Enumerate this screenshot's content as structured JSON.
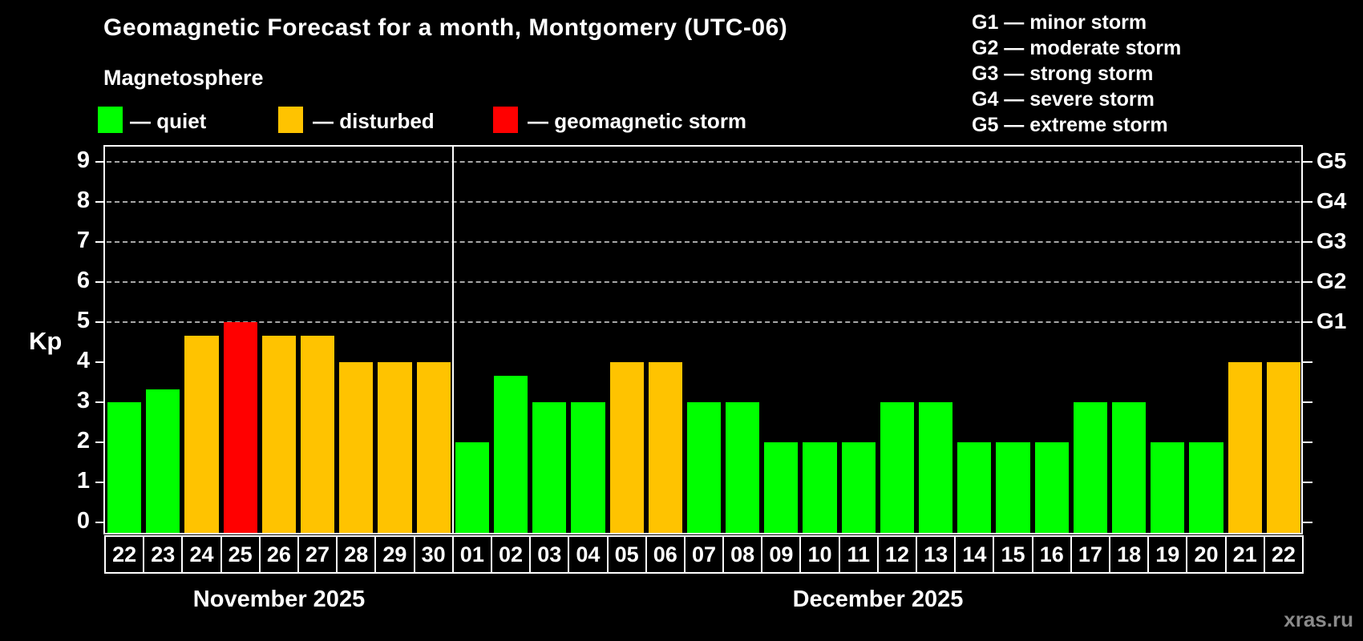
{
  "title": "Geomagnetic Forecast for a month, Montgomery (UTC-06)",
  "subtitle": "Magnetosphere",
  "watermark": "xras.ru",
  "colors": {
    "quiet": "#00ff00",
    "disturbed": "#ffc300",
    "storm": "#ff0000",
    "grid": "#a8a8a8",
    "axis": "#ffffff",
    "watermark": "#8a8a8a"
  },
  "legend": {
    "items": [
      {
        "swatch": "quiet",
        "label": "— quiet"
      },
      {
        "swatch": "disturbed",
        "label": "— disturbed"
      },
      {
        "swatch": "storm",
        "label": "— geomagnetic storm"
      }
    ]
  },
  "g_legend": [
    "G1 — minor storm",
    "G2 — moderate storm",
    "G3 — strong storm",
    "G4 — severe storm",
    "G5 — extreme storm"
  ],
  "chart_data": {
    "type": "bar",
    "title": "Geomagnetic Forecast for a month, Montgomery (UTC-06)",
    "ylabel": "Kp",
    "ylim": [
      0,
      9
    ],
    "yticks": [
      0,
      1,
      2,
      3,
      4,
      5,
      6,
      7,
      8,
      9
    ],
    "gridlines_kp": [
      5,
      6,
      7,
      8,
      9
    ],
    "grid": "dashed horizontal at G-storm levels only",
    "right_axis_labels": [
      {
        "label": "G1",
        "kp": 5
      },
      {
        "label": "G2",
        "kp": 6
      },
      {
        "label": "G3",
        "kp": 7
      },
      {
        "label": "G4",
        "kp": 8
      },
      {
        "label": "G5",
        "kp": 9
      }
    ],
    "months": [
      {
        "label": "November 2025",
        "days": [
          "22",
          "23",
          "24",
          "25",
          "26",
          "27",
          "28",
          "29",
          "30"
        ],
        "values": [
          3,
          3.33,
          4.67,
          5,
          4.67,
          4.67,
          4,
          4,
          4
        ],
        "status": [
          "quiet",
          "quiet",
          "disturbed",
          "storm",
          "disturbed",
          "disturbed",
          "disturbed",
          "disturbed",
          "disturbed"
        ]
      },
      {
        "label": "December 2025",
        "days": [
          "01",
          "02",
          "03",
          "04",
          "05",
          "06",
          "07",
          "08",
          "09",
          "10",
          "11",
          "12",
          "13",
          "14",
          "15",
          "16",
          "17",
          "18",
          "19",
          "20",
          "21",
          "22"
        ],
        "values": [
          2,
          3.67,
          3,
          3,
          4,
          4,
          3,
          3,
          2,
          2,
          2,
          3,
          3,
          2,
          2,
          2,
          3,
          3,
          2,
          2,
          4,
          4
        ],
        "status": [
          "quiet",
          "quiet",
          "quiet",
          "quiet",
          "disturbed",
          "disturbed",
          "quiet",
          "quiet",
          "quiet",
          "quiet",
          "quiet",
          "quiet",
          "quiet",
          "quiet",
          "quiet",
          "quiet",
          "quiet",
          "quiet",
          "quiet",
          "quiet",
          "disturbed",
          "disturbed"
        ]
      }
    ]
  }
}
